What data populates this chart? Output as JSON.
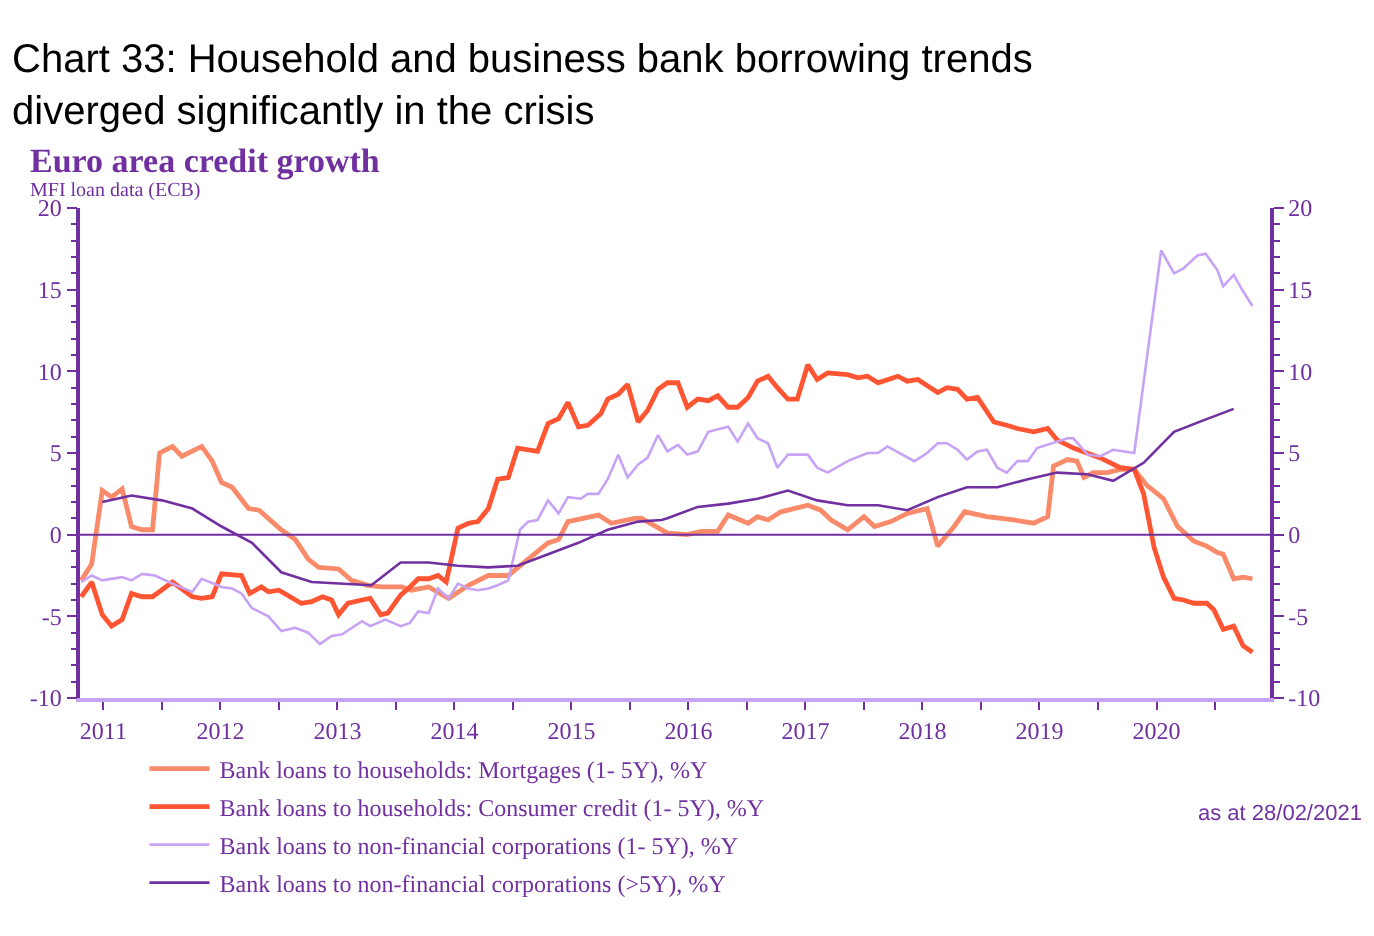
{
  "chart_data": {
    "type": "line",
    "title": "Chart 33: Household and business bank borrowing trends diverged significantly in the crisis",
    "subtitle": "Euro area credit growth",
    "ylabel": "MFI loan data (ECB)",
    "annotations": [
      "as at 28/02/2021"
    ],
    "xlim": [
      2010.8,
      2020.97
    ],
    "xticks": [
      2011,
      {
        "value": 2011.5,
        "label": null
      },
      2012,
      {
        "value": 2012.5,
        "label": null
      },
      2013,
      {
        "value": 2013.5,
        "label": null
      },
      2014,
      {
        "value": 2014.5,
        "label": null
      },
      2015,
      {
        "value": 2015.5,
        "label": null
      },
      2016,
      {
        "value": 2016.5,
        "label": null
      },
      2017,
      {
        "value": 2017.5,
        "label": null
      },
      2018,
      {
        "value": 2018.5,
        "label": null
      },
      2019,
      {
        "value": 2019.5,
        "label": null
      },
      2020,
      {
        "value": 2020.5,
        "label": null
      }
    ],
    "ylim": [
      -10,
      20
    ],
    "yticks": [
      -10,
      -5,
      0,
      5,
      10,
      15,
      20
    ],
    "y2lim": [
      -10,
      20
    ],
    "y2ticks": [
      -10,
      -5,
      0,
      5,
      10,
      15,
      20
    ],
    "ref_lines": [
      {
        "axis": "y",
        "value": 0,
        "color": "#7030a0"
      }
    ],
    "legend": "bottom",
    "grid": false,
    "marker": "none",
    "line_style": "solid",
    "series": [
      {
        "name": "Bank loans to households: Mortgages (1- 5Y), %Y",
        "color": "#f98a6a",
        "x": [
          2010.81,
          2010.9,
          2010.99,
          2011.07,
          2011.16,
          2011.24,
          2011.33,
          2011.42,
          2011.48,
          2011.59,
          2011.67,
          2011.84,
          2011.93,
          2012.01,
          2012.1,
          2012.24,
          2012.33,
          2012.52,
          2012.64,
          2012.75,
          2012.84,
          2013.01,
          2013.12,
          2013.26,
          2013.38,
          2013.55,
          2013.63,
          2013.78,
          2013.95,
          2014.12,
          2014.29,
          2014.46,
          2014.63,
          2014.8,
          2014.89,
          2014.97,
          2015.23,
          2015.34,
          2015.54,
          2015.6,
          2015.82,
          2015.99,
          2016.11,
          2016.25,
          2016.34,
          2016.51,
          2016.59,
          2016.68,
          2016.79,
          2017.02,
          2017.13,
          2017.22,
          2017.36,
          2017.5,
          2017.59,
          2017.73,
          2017.87,
          2018.04,
          2018.13,
          2018.27,
          2018.36,
          2018.55,
          2018.78,
          2018.95,
          2019.07,
          2019.12,
          2019.24,
          2019.32,
          2019.38,
          2019.46,
          2019.58,
          2019.69,
          2019.81,
          2019.92,
          2020.06,
          2020.18,
          2020.32,
          2020.43,
          2020.52,
          2020.57,
          2020.66,
          2020.74,
          2020.82
        ],
        "values": [
          -2.8,
          -1.8,
          2.7,
          2.3,
          2.8,
          0.5,
          0.3,
          0.3,
          5.0,
          5.4,
          4.8,
          5.4,
          4.5,
          3.2,
          2.9,
          1.6,
          1.5,
          0.3,
          -0.3,
          -1.5,
          -2.0,
          -2.1,
          -2.8,
          -3.1,
          -3.2,
          -3.2,
          -3.4,
          -3.2,
          -3.9,
          -3.1,
          -2.5,
          -2.5,
          -1.5,
          -0.5,
          -0.3,
          0.8,
          1.2,
          0.7,
          1.0,
          1.0,
          0.1,
          0.0,
          0.2,
          0.2,
          1.2,
          0.7,
          1.1,
          0.9,
          1.4,
          1.8,
          1.5,
          0.9,
          0.3,
          1.1,
          0.5,
          0.8,
          1.3,
          1.6,
          -0.7,
          0.5,
          1.4,
          1.1,
          0.9,
          0.7,
          1.1,
          4.2,
          4.6,
          4.5,
          3.5,
          3.8,
          3.8,
          4.0,
          4.0,
          3.0,
          2.2,
          0.5,
          -0.4,
          -0.7,
          -1.1,
          -1.2,
          -2.7,
          -2.6,
          -2.7
        ]
      },
      {
        "name": "Bank loans to households: Consumer credit (1- 5Y), %Y",
        "color": "#ff5533",
        "x": [
          2010.81,
          2010.9,
          2010.99,
          2011.07,
          2011.16,
          2011.24,
          2011.33,
          2011.42,
          2011.59,
          2011.76,
          2011.84,
          2011.93,
          2012.01,
          2012.18,
          2012.25,
          2012.35,
          2012.41,
          2012.5,
          2012.69,
          2012.78,
          2012.87,
          2012.95,
          2013.01,
          2013.09,
          2013.21,
          2013.28,
          2013.37,
          2013.43,
          2013.54,
          2013.62,
          2013.69,
          2013.78,
          2013.86,
          2013.93,
          2014.03,
          2014.12,
          2014.2,
          2014.29,
          2014.37,
          2014.46,
          2014.54,
          2014.71,
          2014.8,
          2014.89,
          2014.97,
          2015.06,
          2015.14,
          2015.25,
          2015.31,
          2015.4,
          2015.48,
          2015.57,
          2015.65,
          2015.74,
          2015.82,
          2015.91,
          2015.99,
          2016.08,
          2016.17,
          2016.25,
          2016.34,
          2016.42,
          2016.51,
          2016.59,
          2016.68,
          2016.76,
          2016.85,
          2016.93,
          2017.02,
          2017.1,
          2017.19,
          2017.36,
          2017.45,
          2017.53,
          2017.62,
          2017.79,
          2017.87,
          2017.96,
          2018.13,
          2018.21,
          2018.3,
          2018.38,
          2018.47,
          2018.61,
          2018.72,
          2018.81,
          2018.95,
          2019.07,
          2019.15,
          2019.29,
          2019.52,
          2019.69,
          2019.81,
          2019.89,
          2019.98,
          2020.06,
          2020.15,
          2020.23,
          2020.32,
          2020.43,
          2020.49,
          2020.57,
          2020.66,
          2020.74,
          2020.82
        ],
        "values": [
          -3.8,
          -2.9,
          -4.9,
          -5.6,
          -5.2,
          -3.6,
          -3.8,
          -3.8,
          -2.9,
          -3.8,
          -3.9,
          -3.8,
          -2.4,
          -2.5,
          -3.6,
          -3.2,
          -3.5,
          -3.4,
          -4.2,
          -4.1,
          -3.8,
          -4.0,
          -4.9,
          -4.2,
          -4.0,
          -3.9,
          -4.9,
          -4.8,
          -3.7,
          -3.2,
          -2.7,
          -2.7,
          -2.5,
          -2.9,
          0.4,
          0.7,
          0.8,
          1.6,
          3.4,
          3.5,
          5.3,
          5.1,
          6.8,
          7.1,
          8.1,
          6.6,
          6.7,
          7.4,
          8.3,
          8.6,
          9.2,
          6.9,
          7.6,
          8.9,
          9.3,
          9.3,
          7.8,
          8.3,
          8.2,
          8.5,
          7.8,
          7.8,
          8.4,
          9.4,
          9.7,
          9.0,
          8.3,
          8.3,
          10.4,
          9.5,
          9.9,
          9.8,
          9.6,
          9.7,
          9.3,
          9.7,
          9.4,
          9.5,
          8.7,
          9.0,
          8.9,
          8.3,
          8.4,
          6.9,
          6.7,
          6.5,
          6.3,
          6.5,
          5.8,
          5.3,
          4.7,
          4.1,
          4.0,
          2.5,
          -0.8,
          -2.6,
          -3.9,
          -4.0,
          -4.2,
          -4.2,
          -4.6,
          -5.8,
          -5.6,
          -6.8,
          -7.2
        ]
      },
      {
        "name": "Bank loans to non-financial corporations (1- 5Y), %Y",
        "color": "#c7a3f5",
        "x": [
          2010.81,
          2010.9,
          2010.99,
          2011.16,
          2011.24,
          2011.33,
          2011.44,
          2011.59,
          2011.76,
          2011.84,
          2012.01,
          2012.1,
          2012.18,
          2012.27,
          2012.41,
          2012.52,
          2012.64,
          2012.75,
          2012.85,
          2012.95,
          2013.04,
          2013.21,
          2013.28,
          2013.41,
          2013.54,
          2013.62,
          2013.69,
          2013.78,
          2013.86,
          2013.95,
          2014.03,
          2014.12,
          2014.2,
          2014.29,
          2014.37,
          2014.46,
          2014.56,
          2014.63,
          2014.71,
          2014.8,
          2014.89,
          2014.97,
          2015.08,
          2015.14,
          2015.23,
          2015.31,
          2015.4,
          2015.48,
          2015.57,
          2015.65,
          2015.74,
          2015.82,
          2015.91,
          2015.99,
          2016.08,
          2016.17,
          2016.34,
          2016.42,
          2016.51,
          2016.59,
          2016.68,
          2016.76,
          2016.85,
          2017.02,
          2017.1,
          2017.19,
          2017.36,
          2017.53,
          2017.62,
          2017.7,
          2017.93,
          2018.04,
          2018.13,
          2018.21,
          2018.3,
          2018.38,
          2018.47,
          2018.55,
          2018.64,
          2018.72,
          2018.81,
          2018.9,
          2018.98,
          2019.24,
          2019.29,
          2019.41,
          2019.52,
          2019.63,
          2019.81,
          2020.04,
          2020.15,
          2020.23,
          2020.35,
          2020.42,
          2020.52,
          2020.57,
          2020.66,
          2020.74,
          2020.82
        ],
        "values": [
          -2.9,
          -2.5,
          -2.8,
          -2.6,
          -2.8,
          -2.4,
          -2.5,
          -3.0,
          -3.5,
          -2.7,
          -3.2,
          -3.3,
          -3.6,
          -4.5,
          -5.0,
          -5.9,
          -5.7,
          -6.0,
          -6.7,
          -6.2,
          -6.1,
          -5.3,
          -5.6,
          -5.2,
          -5.6,
          -5.4,
          -4.7,
          -4.8,
          -3.3,
          -3.9,
          -3.0,
          -3.3,
          -3.4,
          -3.3,
          -3.1,
          -2.8,
          0.3,
          0.8,
          0.9,
          2.1,
          1.3,
          2.3,
          2.2,
          2.5,
          2.5,
          3.4,
          4.9,
          3.5,
          4.3,
          4.7,
          6.1,
          5.1,
          5.5,
          4.9,
          5.1,
          6.3,
          6.6,
          5.7,
          6.8,
          5.9,
          5.6,
          4.1,
          4.9,
          4.9,
          4.1,
          3.8,
          4.5,
          5.0,
          5.0,
          5.4,
          4.5,
          5.0,
          5.6,
          5.6,
          5.2,
          4.6,
          5.1,
          5.2,
          4.1,
          3.8,
          4.5,
          4.5,
          5.3,
          5.9,
          5.9,
          4.9,
          4.8,
          5.2,
          5.0,
          17.4,
          16.0,
          16.3,
          17.1,
          17.2,
          16.2,
          15.2,
          15.9,
          14.9,
          14.0
        ]
      },
      {
        "name": "Bank loans to non-financial corporations (>5Y), %Y",
        "color": "#7030a0",
        "x": [
          2010.99,
          2011.24,
          2011.5,
          2011.76,
          2012.01,
          2012.27,
          2012.52,
          2012.78,
          2013.29,
          2013.54,
          2013.78,
          2014.03,
          2014.29,
          2014.54,
          2014.8,
          2015.06,
          2015.31,
          2015.57,
          2015.77,
          2015.82,
          2016.08,
          2016.34,
          2016.59,
          2016.85,
          2017.1,
          2017.36,
          2017.62,
          2017.87,
          2018.13,
          2018.38,
          2018.64,
          2018.9,
          2019.15,
          2019.41,
          2019.63,
          2019.89,
          2020.15,
          2020.4,
          2020.66
        ],
        "values": [
          2.0,
          2.4,
          2.1,
          1.6,
          0.5,
          -0.5,
          -2.3,
          -2.9,
          -3.1,
          -1.7,
          -1.7,
          -1.9,
          -2.0,
          -1.9,
          -1.2,
          -0.5,
          0.3,
          0.8,
          0.9,
          1.0,
          1.7,
          1.9,
          2.2,
          2.7,
          2.1,
          1.8,
          1.8,
          1.5,
          2.3,
          2.9,
          2.9,
          3.4,
          3.8,
          3.7,
          3.3,
          4.4,
          6.3,
          7.0,
          7.7
        ]
      }
    ]
  }
}
